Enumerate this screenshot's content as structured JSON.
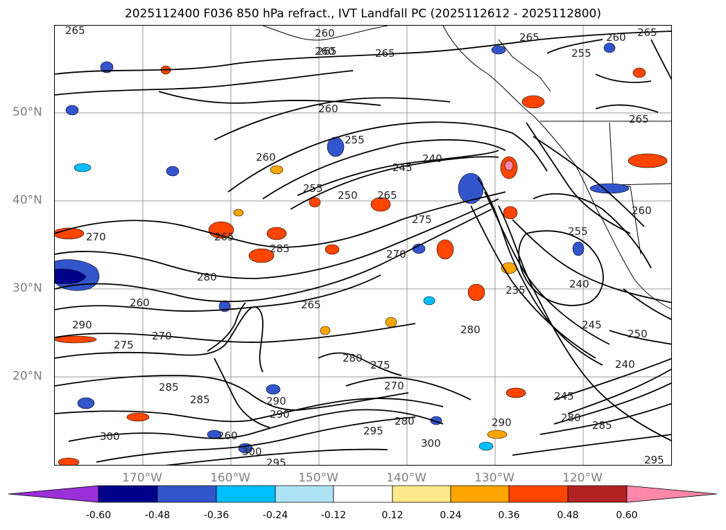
{
  "title": "2025112400 F036 850 hPa refract., IVT Landfall PC (2025112612 - 2025112800)",
  "lat_labels": [
    "50°N",
    "40°N",
    "30°N",
    "20°N"
  ],
  "lon_labels": [
    "170°W",
    "160°W",
    "150°W",
    "140°W",
    "130°W",
    "120°W"
  ],
  "colorbar": {
    "ticks": [
      "-0.60",
      "-0.48",
      "-0.36",
      "-0.24",
      "-0.12",
      "0.12",
      "0.24",
      "0.36",
      "0.48",
      "0.60"
    ],
    "colors": [
      "#9b30d9",
      "#00008b",
      "#3355cc",
      "#00bfff",
      "#aee3f5",
      "#ffffff",
      "#ffe98a",
      "#ffa500",
      "#ff4500",
      "#b22222",
      "#ff88aa"
    ]
  },
  "contour_labels": [
    "265",
    "260",
    "265",
    "260",
    "265",
    "265",
    "260",
    "265",
    "255",
    "260",
    "255",
    "260",
    "245",
    "240",
    "250",
    "255",
    "265",
    "275",
    "270",
    "285",
    "280",
    "260",
    "265",
    "270",
    "290",
    "275",
    "270",
    "265",
    "285",
    "280",
    "275",
    "270",
    "290",
    "285",
    "260",
    "300",
    "290",
    "280",
    "295",
    "300",
    "295",
    "235",
    "240",
    "245",
    "250",
    "240",
    "245",
    "280",
    "285",
    "290",
    "295",
    "255",
    "260",
    "265",
    "280",
    "300"
  ],
  "map": {
    "land_color": "#ffffff",
    "contour_color": "#000000",
    "grid_color": "#999999"
  }
}
